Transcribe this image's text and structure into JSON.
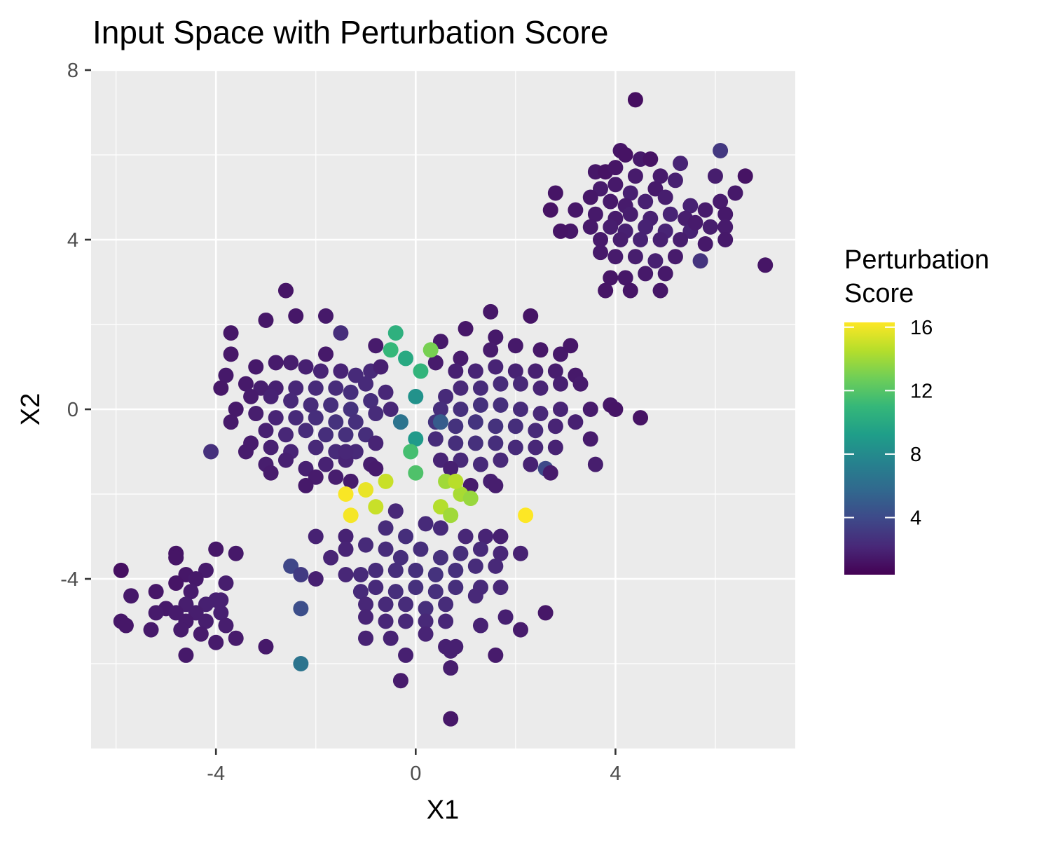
{
  "chart_data": {
    "type": "scatter",
    "title": "Input Space with Perturbation Score",
    "xlabel": "X1",
    "ylabel": "X2",
    "xlim": [
      -6.5,
      7.6
    ],
    "ylim": [
      -8.0,
      8.0
    ],
    "x_ticks": [
      -4,
      0,
      4
    ],
    "y_ticks": [
      -4,
      0,
      4,
      8
    ],
    "x_tick_labels": [
      "-4",
      "0",
      "4"
    ],
    "y_tick_labels": [
      "-4",
      "0",
      "4",
      "8"
    ],
    "grid": true,
    "panel_background": "#ebebeb",
    "grid_color": "#ffffff",
    "legend": {
      "title_lines": [
        "Perturbation",
        "Score"
      ],
      "placement": "right",
      "color_scale": "viridis",
      "range": [
        0.4,
        16.3
      ],
      "ticks": [
        4,
        8,
        12,
        16
      ],
      "tick_labels": [
        "4",
        "8",
        "12",
        "16"
      ],
      "colors": [
        "#440154",
        "#482878",
        "#3e4989",
        "#31688e",
        "#26828e",
        "#1f9e89",
        "#35b779",
        "#6ece58",
        "#b5de2b",
        "#fde725"
      ]
    },
    "points": [
      [
        4.4,
        7.3,
        1.0
      ],
      [
        4.1,
        6.1,
        1.3
      ],
      [
        4.2,
        6.0,
        1.2
      ],
      [
        4.5,
        5.9,
        1.5
      ],
      [
        4.7,
        5.9,
        1.2
      ],
      [
        6.1,
        6.1,
        3.0
      ],
      [
        3.6,
        5.6,
        1.4
      ],
      [
        3.8,
        5.6,
        1.2
      ],
      [
        4.0,
        5.7,
        1.3
      ],
      [
        4.4,
        5.5,
        1.6
      ],
      [
        4.9,
        5.5,
        1.6
      ],
      [
        5.3,
        5.8,
        2.0
      ],
      [
        6.0,
        5.5,
        1.7
      ],
      [
        6.6,
        5.5,
        1.2
      ],
      [
        3.7,
        5.2,
        1.6
      ],
      [
        4.0,
        5.3,
        1.5
      ],
      [
        4.3,
        5.1,
        1.8
      ],
      [
        4.8,
        5.2,
        1.5
      ],
      [
        5.2,
        5.4,
        1.8
      ],
      [
        6.4,
        5.1,
        1.5
      ],
      [
        2.8,
        5.1,
        1.3
      ],
      [
        3.5,
        5.0,
        1.4
      ],
      [
        3.9,
        4.9,
        1.5
      ],
      [
        4.2,
        4.8,
        1.6
      ],
      [
        4.6,
        4.9,
        1.8
      ],
      [
        5.0,
        5.0,
        1.7
      ],
      [
        5.5,
        4.8,
        1.9
      ],
      [
        6.1,
        4.9,
        1.6
      ],
      [
        2.7,
        4.7,
        1.2
      ],
      [
        3.2,
        4.7,
        1.4
      ],
      [
        3.6,
        4.6,
        1.5
      ],
      [
        4.0,
        4.5,
        1.6
      ],
      [
        4.3,
        4.6,
        1.7
      ],
      [
        4.7,
        4.5,
        1.8
      ],
      [
        5.1,
        4.6,
        2.0
      ],
      [
        5.4,
        4.5,
        1.7
      ],
      [
        5.8,
        4.7,
        1.6
      ],
      [
        6.2,
        4.6,
        1.5
      ],
      [
        3.5,
        4.3,
        1.5
      ],
      [
        3.9,
        4.3,
        1.7
      ],
      [
        4.2,
        4.2,
        1.8
      ],
      [
        4.6,
        4.3,
        1.9
      ],
      [
        5.0,
        4.2,
        2.0
      ],
      [
        5.5,
        4.2,
        1.9
      ],
      [
        5.9,
        4.3,
        1.7
      ],
      [
        6.2,
        4.3,
        1.6
      ],
      [
        3.1,
        4.2,
        1.4
      ],
      [
        2.9,
        4.2,
        1.3
      ],
      [
        3.7,
        4.0,
        1.5
      ],
      [
        4.1,
        4.0,
        1.7
      ],
      [
        4.5,
        4.0,
        1.9
      ],
      [
        4.9,
        4.0,
        1.8
      ],
      [
        5.3,
        4.0,
        1.7
      ],
      [
        6.2,
        4.0,
        1.5
      ],
      [
        3.7,
        3.7,
        1.5
      ],
      [
        4.0,
        3.6,
        1.6
      ],
      [
        4.4,
        3.6,
        1.7
      ],
      [
        4.8,
        3.5,
        1.8
      ],
      [
        5.2,
        3.6,
        1.6
      ],
      [
        5.7,
        3.5,
        2.8
      ],
      [
        3.9,
        3.1,
        1.3
      ],
      [
        4.2,
        3.1,
        1.4
      ],
      [
        4.6,
        3.2,
        1.5
      ],
      [
        5.0,
        3.2,
        1.5
      ],
      [
        3.8,
        2.8,
        1.3
      ],
      [
        4.3,
        2.8,
        1.3
      ],
      [
        4.9,
        2.8,
        1.4
      ],
      [
        7.0,
        3.4,
        1.3
      ],
      [
        5.8,
        3.9,
        1.5
      ],
      [
        5.6,
        4.4,
        1.6
      ],
      [
        -2.6,
        2.8,
        1.3
      ],
      [
        -2.4,
        2.2,
        1.4
      ],
      [
        -3.0,
        2.1,
        1.4
      ],
      [
        -1.8,
        2.2,
        1.5
      ],
      [
        -1.5,
        1.8,
        2.5
      ],
      [
        1.5,
        2.3,
        1.4
      ],
      [
        2.3,
        2.2,
        1.3
      ],
      [
        1.0,
        1.9,
        1.4
      ],
      [
        1.6,
        1.7,
        1.5
      ],
      [
        -3.7,
        1.8,
        1.4
      ],
      [
        -0.8,
        1.5,
        1.6
      ],
      [
        -1.8,
        1.3,
        1.5
      ],
      [
        -3.7,
        1.3,
        1.4
      ],
      [
        -3.2,
        1.0,
        1.5
      ],
      [
        -2.8,
        1.1,
        1.6
      ],
      [
        -2.5,
        1.1,
        1.7
      ],
      [
        -2.2,
        1.0,
        1.8
      ],
      [
        -1.9,
        0.9,
        2.0
      ],
      [
        -1.5,
        0.9,
        2.0
      ],
      [
        -1.2,
        0.8,
        2.3
      ],
      [
        -0.9,
        0.9,
        2.2
      ],
      [
        -0.7,
        1.0,
        1.8
      ],
      [
        -3.8,
        0.8,
        1.5
      ],
      [
        -3.4,
        0.6,
        1.5
      ],
      [
        -3.1,
        0.5,
        1.7
      ],
      [
        -2.8,
        0.5,
        1.8
      ],
      [
        -2.4,
        0.5,
        2.1
      ],
      [
        -2.0,
        0.5,
        2.3
      ],
      [
        -1.6,
        0.5,
        2.4
      ],
      [
        -1.3,
        0.4,
        2.5
      ],
      [
        -1.0,
        0.6,
        2.3
      ],
      [
        -3.9,
        0.5,
        1.4
      ],
      [
        -3.3,
        0.3,
        1.6
      ],
      [
        -2.9,
        0.3,
        1.9
      ],
      [
        -2.5,
        0.2,
        2.2
      ],
      [
        -2.1,
        0.1,
        2.4
      ],
      [
        -1.7,
        0.1,
        2.6
      ],
      [
        -1.3,
        0.0,
        2.7
      ],
      [
        -0.9,
        0.2,
        2.5
      ],
      [
        -0.6,
        0.4,
        2.1
      ],
      [
        -3.6,
        0.0,
        1.5
      ],
      [
        -3.2,
        -0.1,
        1.7
      ],
      [
        -2.8,
        -0.2,
        2.0
      ],
      [
        -2.4,
        -0.2,
        2.3
      ],
      [
        -2.0,
        -0.2,
        2.5
      ],
      [
        -1.6,
        -0.3,
        2.7
      ],
      [
        -1.2,
        -0.3,
        2.6
      ],
      [
        -0.8,
        -0.1,
        2.4
      ],
      [
        -0.5,
        0.0,
        2.1
      ],
      [
        -3.7,
        -0.3,
        1.5
      ],
      [
        -3.0,
        -0.5,
        1.8
      ],
      [
        -2.6,
        -0.6,
        2.1
      ],
      [
        -2.2,
        -0.5,
        2.4
      ],
      [
        -1.8,
        -0.6,
        2.5
      ],
      [
        -1.4,
        -0.6,
        2.6
      ],
      [
        -1.0,
        -0.6,
        2.5
      ],
      [
        -3.3,
        -0.8,
        1.6
      ],
      [
        -2.9,
        -0.9,
        1.8
      ],
      [
        -2.5,
        -1.0,
        2.0
      ],
      [
        -2.0,
        -0.9,
        2.2
      ],
      [
        -1.6,
        -1.0,
        2.3
      ],
      [
        -1.2,
        -1.0,
        2.2
      ],
      [
        -0.8,
        -0.8,
        2.0
      ],
      [
        -4.1,
        -1.0,
        2.6
      ],
      [
        -3.4,
        -1.0,
        1.6
      ],
      [
        -3.0,
        -1.3,
        1.7
      ],
      [
        -2.6,
        -1.2,
        1.8
      ],
      [
        -2.2,
        -1.4,
        1.8
      ],
      [
        -1.8,
        -1.3,
        1.9
      ],
      [
        -1.4,
        -1.2,
        2.0
      ],
      [
        -0.9,
        -1.3,
        1.7
      ],
      [
        -2.9,
        -1.5,
        1.6
      ],
      [
        -2.0,
        -1.6,
        1.6
      ],
      [
        -1.6,
        -1.6,
        1.7
      ],
      [
        -1.3,
        -1.7,
        1.6
      ],
      [
        -0.8,
        -1.4,
        1.6
      ],
      [
        -2.2,
        -1.8,
        1.5
      ],
      [
        0.5,
        1.6,
        1.5
      ],
      [
        0.9,
        1.2,
        1.6
      ],
      [
        1.5,
        1.4,
        1.6
      ],
      [
        2.0,
        1.5,
        1.5
      ],
      [
        2.5,
        1.4,
        1.4
      ],
      [
        2.9,
        1.3,
        1.5
      ],
      [
        3.1,
        1.5,
        1.4
      ],
      [
        0.4,
        1.1,
        1.6
      ],
      [
        0.8,
        0.9,
        1.8
      ],
      [
        1.2,
        0.9,
        2.0
      ],
      [
        1.6,
        1.0,
        2.0
      ],
      [
        2.0,
        0.9,
        1.9
      ],
      [
        2.4,
        0.9,
        1.8
      ],
      [
        2.8,
        0.9,
        1.7
      ],
      [
        3.2,
        0.8,
        1.5
      ],
      [
        0.6,
        0.3,
        2.3
      ],
      [
        0.9,
        0.5,
        2.2
      ],
      [
        1.3,
        0.5,
        2.4
      ],
      [
        1.7,
        0.6,
        2.4
      ],
      [
        2.1,
        0.6,
        2.2
      ],
      [
        2.5,
        0.5,
        2.0
      ],
      [
        2.9,
        0.6,
        1.8
      ],
      [
        3.3,
        0.6,
        1.6
      ],
      [
        0.5,
        0.0,
        2.5
      ],
      [
        0.9,
        0.0,
        2.6
      ],
      [
        1.3,
        0.1,
        2.7
      ],
      [
        1.7,
        0.1,
        2.6
      ],
      [
        2.1,
        0.0,
        2.4
      ],
      [
        2.5,
        -0.1,
        2.2
      ],
      [
        2.9,
        0.0,
        2.0
      ],
      [
        3.5,
        0.0,
        1.6
      ],
      [
        0.4,
        -0.3,
        2.8
      ],
      [
        0.8,
        -0.4,
        2.7
      ],
      [
        1.2,
        -0.3,
        2.8
      ],
      [
        1.6,
        -0.4,
        2.7
      ],
      [
        2.0,
        -0.4,
        2.5
      ],
      [
        2.4,
        -0.5,
        2.3
      ],
      [
        2.8,
        -0.4,
        2.0
      ],
      [
        3.2,
        -0.3,
        1.8
      ],
      [
        0.4,
        -0.7,
        2.4
      ],
      [
        0.8,
        -0.8,
        2.5
      ],
      [
        1.2,
        -0.8,
        2.6
      ],
      [
        1.6,
        -0.8,
        2.5
      ],
      [
        2.0,
        -0.9,
        2.3
      ],
      [
        2.4,
        -0.9,
        2.1
      ],
      [
        2.8,
        -0.9,
        1.9
      ],
      [
        3.5,
        -0.7,
        1.6
      ],
      [
        0.5,
        -1.2,
        2.0
      ],
      [
        0.9,
        -1.2,
        2.2
      ],
      [
        1.3,
        -1.3,
        2.3
      ],
      [
        1.7,
        -1.2,
        2.2
      ],
      [
        2.3,
        -1.3,
        1.9
      ],
      [
        2.6,
        -1.4,
        4.0
      ],
      [
        2.7,
        -1.5,
        1.6
      ],
      [
        3.6,
        -1.3,
        1.7
      ],
      [
        0.7,
        -1.4,
        1.8
      ],
      [
        1.1,
        -1.8,
        1.6
      ],
      [
        1.5,
        -1.7,
        1.8
      ],
      [
        1.6,
        -1.8,
        1.7
      ],
      [
        3.9,
        0.1,
        1.4
      ],
      [
        4.5,
        -0.2,
        1.2
      ],
      [
        4.0,
        0.0,
        1.3
      ],
      [
        -1.4,
        -1.0,
        2.1
      ],
      [
        -0.4,
        1.8,
        10.5
      ],
      [
        -0.5,
        1.4,
        11.0
      ],
      [
        -0.2,
        1.2,
        10.0
      ],
      [
        0.3,
        1.4,
        13.0
      ],
      [
        0.1,
        0.9,
        10.8
      ],
      [
        0.0,
        0.3,
        8.5
      ],
      [
        -0.3,
        -0.3,
        6.5
      ],
      [
        0.0,
        -0.7,
        9.0
      ],
      [
        -0.1,
        -1.0,
        11.5
      ],
      [
        0.0,
        -1.5,
        11.8
      ],
      [
        0.5,
        -0.3,
        5.0
      ],
      [
        -0.6,
        -1.7,
        15.0
      ],
      [
        -1.4,
        -2.0,
        16.2
      ],
      [
        -1.0,
        -1.9,
        15.8
      ],
      [
        -1.3,
        -2.5,
        16.1
      ],
      [
        -0.8,
        -2.3,
        15.0
      ],
      [
        0.5,
        -2.3,
        14.5
      ],
      [
        0.7,
        -2.5,
        14.0
      ],
      [
        0.9,
        -2.0,
        14.2
      ],
      [
        1.1,
        -2.1,
        13.8
      ],
      [
        0.6,
        -1.7,
        14.0
      ],
      [
        0.8,
        -1.7,
        14.6
      ],
      [
        2.2,
        -2.5,
        16.3
      ],
      [
        -4.0,
        -3.3,
        1.4
      ],
      [
        -3.6,
        -3.4,
        1.5
      ],
      [
        -4.8,
        -3.4,
        1.3
      ],
      [
        -4.8,
        -3.5,
        1.3
      ],
      [
        -5.9,
        -3.8,
        1.1
      ],
      [
        -4.6,
        -3.9,
        1.4
      ],
      [
        -4.2,
        -3.8,
        1.6
      ],
      [
        -4.4,
        -4.0,
        1.5
      ],
      [
        -3.8,
        -4.1,
        1.7
      ],
      [
        -3.9,
        -4.5,
        1.8
      ],
      [
        -4.8,
        -4.1,
        1.3
      ],
      [
        -4.5,
        -4.3,
        1.6
      ],
      [
        -4.0,
        -4.5,
        1.8
      ],
      [
        -5.2,
        -4.3,
        1.4
      ],
      [
        -5.7,
        -4.4,
        1.5
      ],
      [
        -5.0,
        -4.7,
        1.5
      ],
      [
        -4.6,
        -4.6,
        1.7
      ],
      [
        -4.2,
        -4.6,
        1.8
      ],
      [
        -3.9,
        -4.8,
        1.8
      ],
      [
        -4.4,
        -4.8,
        1.7
      ],
      [
        -4.8,
        -4.8,
        1.6
      ],
      [
        -5.2,
        -4.8,
        1.6
      ],
      [
        -5.9,
        -5.0,
        1.4
      ],
      [
        -4.6,
        -5.0,
        1.6
      ],
      [
        -4.2,
        -5.0,
        1.7
      ],
      [
        -3.8,
        -5.1,
        1.7
      ],
      [
        -5.3,
        -5.2,
        1.5
      ],
      [
        -4.7,
        -5.2,
        1.6
      ],
      [
        -4.3,
        -5.3,
        1.6
      ],
      [
        -3.6,
        -5.4,
        1.6
      ],
      [
        -5.8,
        -5.1,
        1.4
      ],
      [
        -4.6,
        -5.8,
        1.5
      ],
      [
        -4.0,
        -5.5,
        1.6
      ],
      [
        -3.0,
        -5.6,
        1.5
      ],
      [
        -2.5,
        -3.7,
        3.8
      ],
      [
        -2.3,
        -3.9,
        3.2
      ],
      [
        -2.3,
        -4.7,
        4.2
      ],
      [
        -2.3,
        -6.0,
        6.5
      ],
      [
        -2.0,
        -4.0,
        1.8
      ],
      [
        -2.0,
        -3.0,
        1.9
      ],
      [
        -1.4,
        -3.0,
        1.9
      ],
      [
        -1.4,
        -3.3,
        2.0
      ],
      [
        -1.7,
        -3.5,
        2.0
      ],
      [
        -1.4,
        -3.9,
        2.1
      ],
      [
        -1.1,
        -3.9,
        2.3
      ],
      [
        -1.1,
        -4.3,
        2.3
      ],
      [
        -0.6,
        -2.8,
        2.4
      ],
      [
        -0.4,
        -2.4,
        2.2
      ],
      [
        -0.2,
        -3.0,
        2.5
      ],
      [
        0.2,
        -2.7,
        2.3
      ],
      [
        0.5,
        -2.8,
        2.3
      ],
      [
        1.0,
        -3.0,
        2.1
      ],
      [
        1.4,
        -3.0,
        2.0
      ],
      [
        1.7,
        -3.0,
        1.8
      ],
      [
        -1.0,
        -3.2,
        2.3
      ],
      [
        -0.6,
        -3.3,
        2.4
      ],
      [
        -0.3,
        -3.5,
        2.5
      ],
      [
        0.1,
        -3.3,
        2.5
      ],
      [
        0.5,
        -3.5,
        2.6
      ],
      [
        0.9,
        -3.4,
        2.5
      ],
      [
        1.3,
        -3.3,
        2.3
      ],
      [
        1.7,
        -3.4,
        2.1
      ],
      [
        2.1,
        -3.4,
        1.9
      ],
      [
        -0.8,
        -3.8,
        2.4
      ],
      [
        -0.4,
        -3.8,
        2.5
      ],
      [
        0.0,
        -3.8,
        2.6
      ],
      [
        0.4,
        -3.9,
        2.7
      ],
      [
        0.8,
        -3.8,
        2.6
      ],
      [
        1.2,
        -3.7,
        2.4
      ],
      [
        1.6,
        -3.7,
        2.2
      ],
      [
        -0.8,
        -4.2,
        2.3
      ],
      [
        -0.4,
        -4.3,
        2.5
      ],
      [
        0.0,
        -4.2,
        2.6
      ],
      [
        0.4,
        -4.3,
        2.6
      ],
      [
        0.8,
        -4.2,
        2.5
      ],
      [
        1.3,
        -4.2,
        2.3
      ],
      [
        1.7,
        -4.2,
        2.1
      ],
      [
        -1.0,
        -4.6,
        2.1
      ],
      [
        -0.6,
        -4.6,
        2.3
      ],
      [
        -0.2,
        -4.6,
        2.4
      ],
      [
        0.2,
        -4.7,
        2.5
      ],
      [
        0.6,
        -4.6,
        2.4
      ],
      [
        1.2,
        -4.4,
        2.2
      ],
      [
        -1.0,
        -4.9,
        2.0
      ],
      [
        -0.6,
        -5.0,
        2.1
      ],
      [
        -0.2,
        -5.0,
        2.2
      ],
      [
        0.2,
        -5.0,
        2.2
      ],
      [
        0.6,
        -5.0,
        2.1
      ],
      [
        1.3,
        -5.1,
        1.9
      ],
      [
        1.8,
        -4.9,
        1.8
      ],
      [
        2.1,
        -5.2,
        1.6
      ],
      [
        2.6,
        -4.8,
        1.4
      ],
      [
        -1.0,
        -5.4,
        1.9
      ],
      [
        -0.5,
        -5.4,
        1.9
      ],
      [
        0.2,
        -5.3,
        2.0
      ],
      [
        0.6,
        -5.6,
        1.8
      ],
      [
        0.7,
        -5.7,
        1.8
      ],
      [
        0.8,
        -5.6,
        1.8
      ],
      [
        1.6,
        -5.8,
        1.6
      ],
      [
        -0.2,
        -5.8,
        1.8
      ],
      [
        -0.3,
        -6.4,
        1.6
      ],
      [
        0.7,
        -6.1,
        1.7
      ],
      [
        0.7,
        -7.3,
        1.4
      ]
    ]
  }
}
